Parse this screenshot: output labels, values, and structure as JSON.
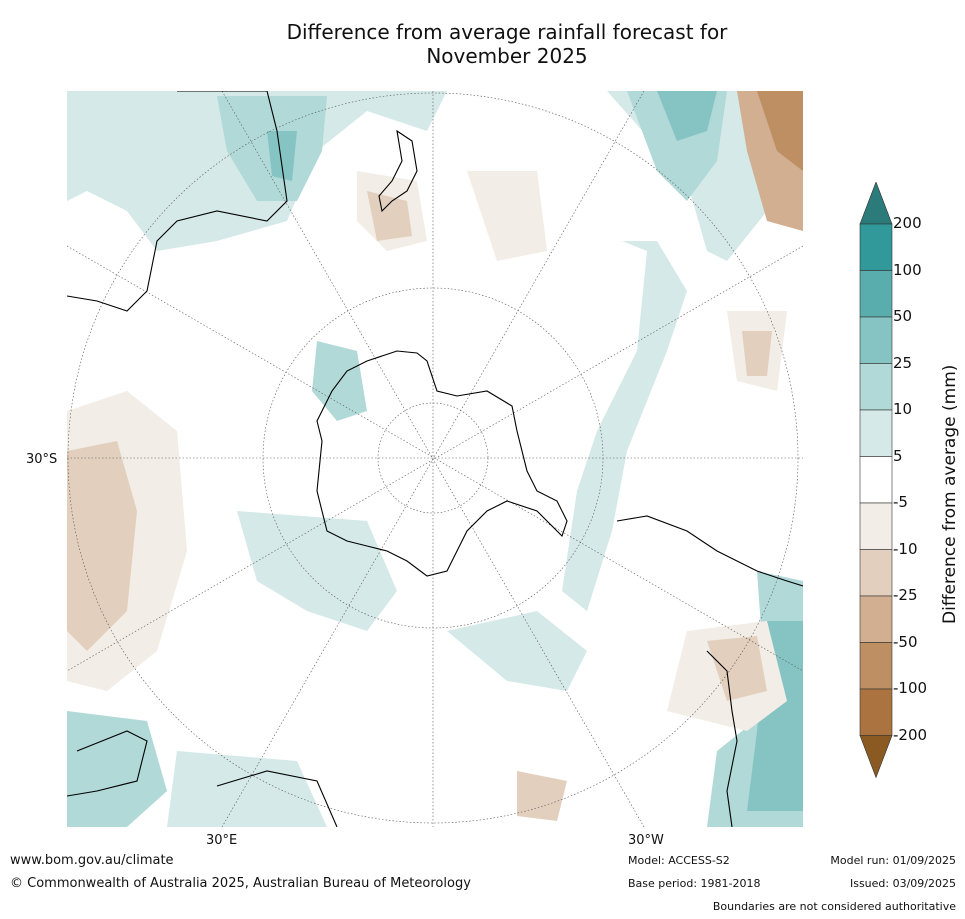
{
  "title_line1": "Difference from average rainfall forecast for",
  "title_line2": "November 2025",
  "lat_label": "30°S",
  "lon_labels": {
    "east": "30°E",
    "west": "30°W"
  },
  "colorbar": {
    "title": "Difference from average (mm)",
    "levels": [
      "200",
      "100",
      "50",
      "25",
      "10",
      "5",
      "-5",
      "-10",
      "-25",
      "-50",
      "-100",
      "-200"
    ],
    "colors": [
      "#2b7b7b",
      "#31999a",
      "#5aadad",
      "#86c4c3",
      "#b0d9d8",
      "#d4e9e8",
      "#ffffff",
      "#f2ede6",
      "#e2cfbd",
      "#d1af90",
      "#bd8f63",
      "#ab733f",
      "#8b5a22"
    ]
  },
  "footer": {
    "website": "www.bom.gov.au/climate",
    "copyright": "© Commonwealth of Australia 2025, Australian Bureau of Meteorology",
    "model": "Model: ACCESS-S2",
    "base_period": "Base period: 1981-2018",
    "model_run": "Model run: 01/09/2025",
    "issued": "Issued: 03/09/2025",
    "boundaries_note": "Boundaries are not considered authoritative"
  }
}
